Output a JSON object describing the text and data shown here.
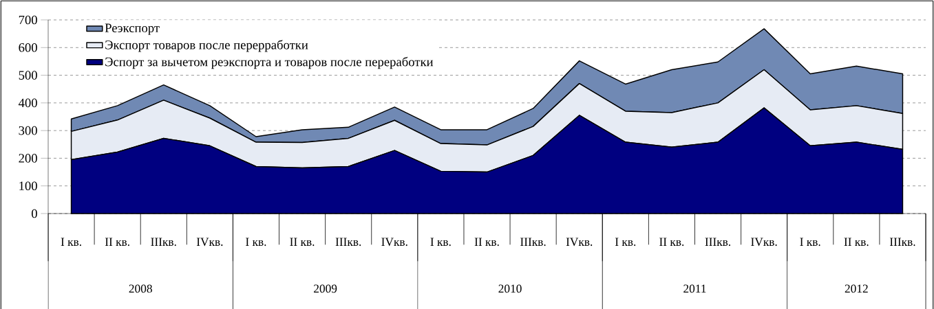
{
  "chart_data": {
    "type": "area",
    "stacked": true,
    "categories": [
      "I кв.",
      "II кв.",
      "IIIкв.",
      "IVкв.",
      "I кв.",
      "II кв.",
      "IIIкв.",
      "IVкв.",
      "I кв.",
      "II кв.",
      "IIIкв.",
      "IVкв.",
      "I кв.",
      "II кв.",
      "IIIкв.",
      "IVкв.",
      "I кв.",
      "II кв.",
      "IIIкв."
    ],
    "series": [
      {
        "name": "Эспорт за вычетом реэкспорта и товаров после переработки",
        "color": "#000080",
        "values": [
          195,
          222,
          272,
          245,
          170,
          165,
          170,
          228,
          153,
          150,
          210,
          355,
          258,
          240,
          258,
          382,
          245,
          258,
          232
        ]
      },
      {
        "name": "Экспорт товаров после перерработки",
        "color": "#e6ebf4",
        "values": [
          102,
          116,
          138,
          100,
          88,
          92,
          102,
          109,
          100,
          98,
          105,
          115,
          112,
          125,
          142,
          138,
          130,
          132,
          130
        ]
      },
      {
        "name": "Реэкспорт",
        "color": "#7089b4",
        "values": [
          45,
          52,
          55,
          45,
          20,
          46,
          40,
          48,
          50,
          55,
          65,
          82,
          98,
          155,
          148,
          148,
          130,
          143,
          143
        ]
      }
    ],
    "annotations": [
      "2008",
      "2009",
      "2010",
      "2011",
      "2012"
    ],
    "ylim": [
      0,
      700
    ],
    "yticks": [
      0,
      100,
      200,
      300,
      400,
      500,
      600,
      700
    ],
    "grid": "y",
    "legend": "top left"
  }
}
